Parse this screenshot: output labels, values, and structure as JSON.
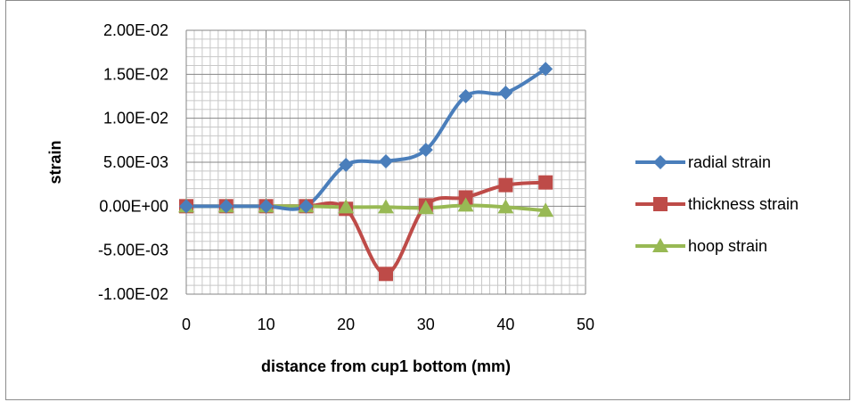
{
  "chart_data": {
    "type": "line",
    "xlabel": "distance from cup1 bottom (mm)",
    "ylabel": "strain",
    "xlim": [
      0,
      50
    ],
    "ylim": [
      -0.01,
      0.02
    ],
    "x_ticks": [
      0,
      10,
      20,
      30,
      40,
      50
    ],
    "y_ticks": [
      0.02,
      0.015,
      0.01,
      0.005,
      0,
      -0.005,
      -0.01
    ],
    "x_tick_labels": [
      "0",
      "10",
      "20",
      "30",
      "40",
      "50"
    ],
    "y_tick_labels": [
      "2.00E-02",
      "1.50E-02",
      "1.00E-02",
      "5.00E-03",
      "0.00E+00",
      "-5.00E-03",
      "-1.00E-02"
    ],
    "grid": true,
    "legend_position": "right",
    "x": [
      0,
      5,
      10,
      15,
      20,
      25,
      30,
      35,
      40,
      45
    ],
    "series": [
      {
        "name": "radial strain",
        "color": "#4a7ebb",
        "marker": "diamond",
        "values": [
          0,
          0,
          0,
          0,
          0.0047,
          0.0051,
          0.0064,
          0.0125,
          0.0129,
          0.0156
        ]
      },
      {
        "name": "thickness strain",
        "color": "#be4b48",
        "marker": "square",
        "values": [
          0,
          0,
          0,
          0,
          -0.0003,
          -0.0077,
          0.0001,
          0.001,
          0.0024,
          0.0027
        ]
      },
      {
        "name": "hoop strain",
        "color": "#98b954",
        "marker": "triangle",
        "values": [
          0,
          0,
          0,
          0,
          -0.0001,
          -0.0001,
          -0.0002,
          0.0001,
          -0.0001,
          -0.0005
        ]
      }
    ]
  }
}
